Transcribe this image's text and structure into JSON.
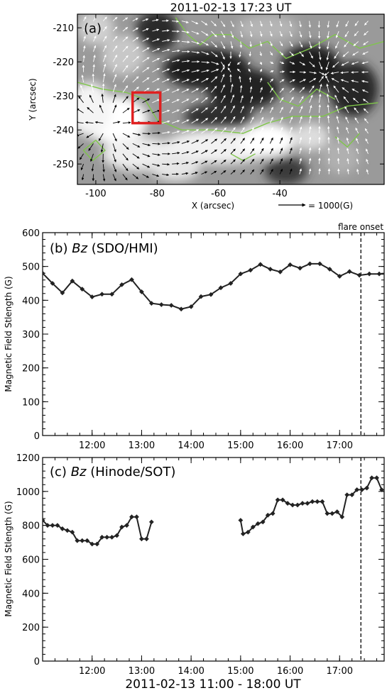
{
  "chart_data": [
    {
      "type": "vector-map",
      "panel_label": "(a)",
      "title": "2011-02-13 17:23 UT",
      "xlabel": "X (arcsec)",
      "ylabel": "Y (arcsec)",
      "xlim": [
        -106,
        -6
      ],
      "ylim": [
        -256,
        -206
      ],
      "x_ticks": [
        -100,
        -80,
        -60,
        -40
      ],
      "y_ticks": [
        -210,
        -220,
        -230,
        -240,
        -250
      ],
      "legend_text": "= 1000(G)",
      "contour_color": "#7fc64a",
      "box_color": "#e02020",
      "box_x": [
        -88,
        -79
      ],
      "box_y": [
        -238,
        -229
      ]
    },
    {
      "type": "line",
      "panel_label": "(b)",
      "label_italic": "Bz",
      "label_rest": "(SDO/HMI)",
      "xlabel": "",
      "ylabel": "Magnetic Field Stlength (G)",
      "xlim": [
        11.0,
        17.9
      ],
      "ylim": [
        0,
        600
      ],
      "y_ticks": [
        0,
        100,
        200,
        300,
        400,
        500,
        600
      ],
      "x_ticks": [
        12,
        13,
        14,
        15,
        16,
        17
      ],
      "x_tick_labels": [
        "12:00",
        "13:00",
        "14:00",
        "15:00",
        "16:00",
        "17:00"
      ],
      "marker_line": 17.43,
      "marker_label": "flare onset",
      "series": [
        {
          "x": [
            11.0,
            11.2,
            11.4,
            11.6,
            11.8,
            12.0,
            12.2,
            12.4,
            12.6,
            12.8,
            13.0,
            13.2,
            13.4,
            13.6,
            13.8,
            14.0,
            14.2,
            14.4,
            14.6,
            14.8,
            15.0,
            15.2,
            15.4,
            15.6,
            15.8,
            16.0,
            16.2,
            16.4,
            16.6,
            16.8,
            17.0,
            17.2,
            17.4,
            17.6,
            17.8,
            18.0
          ],
          "y": [
            480,
            450,
            422,
            457,
            433,
            410,
            418,
            418,
            446,
            461,
            425,
            391,
            387,
            385,
            374,
            381,
            411,
            417,
            437,
            450,
            478,
            489,
            506,
            492,
            484,
            505,
            495,
            508,
            508,
            492,
            471,
            485,
            474,
            478,
            478,
            478
          ]
        }
      ]
    },
    {
      "type": "line",
      "panel_label": "(c)",
      "label_italic": "Bz",
      "label_rest": "(Hinode/SOT)",
      "xlabel": "2011-02-13 11:00 - 18:00 UT",
      "ylabel": "Magnetic Field Stlength (G)",
      "xlim": [
        11.0,
        17.9
      ],
      "ylim": [
        0,
        1200
      ],
      "y_ticks": [
        0,
        200,
        400,
        600,
        800,
        1000,
        1200
      ],
      "x_ticks": [
        12,
        13,
        14,
        15,
        16,
        17
      ],
      "x_tick_labels": [
        "12:00",
        "13:00",
        "14:00",
        "15:00",
        "16:00",
        "17:00"
      ],
      "marker_line": 17.43,
      "series": [
        {
          "x": [
            11.0,
            11.1,
            11.2,
            11.3,
            11.4,
            11.5,
            11.6,
            11.7,
            11.8,
            11.9,
            12.0,
            12.1,
            12.2,
            12.3,
            12.4,
            12.5,
            12.6,
            12.7,
            12.8,
            12.9,
            13.0,
            13.1,
            13.2
          ],
          "y": [
            830,
            800,
            800,
            800,
            780,
            770,
            760,
            710,
            710,
            710,
            690,
            690,
            730,
            730,
            730,
            740,
            790,
            800,
            850,
            850,
            720,
            720,
            820
          ]
        },
        {
          "x": [
            15.0,
            15.05,
            15.15,
            15.25,
            15.35,
            15.45,
            15.55,
            15.65,
            15.75,
            15.85,
            15.95,
            16.05,
            16.15,
            16.25,
            16.35,
            16.45,
            16.55,
            16.65,
            16.75,
            16.85,
            16.95,
            17.05,
            17.15,
            17.25,
            17.35,
            17.45,
            17.55,
            17.65,
            17.75,
            17.85
          ],
          "y": [
            830,
            750,
            760,
            790,
            810,
            820,
            860,
            870,
            950,
            950,
            930,
            920,
            920,
            930,
            930,
            940,
            940,
            940,
            870,
            870,
            880,
            850,
            980,
            980,
            1010,
            1010,
            1020,
            1080,
            1080,
            1010
          ]
        }
      ]
    }
  ]
}
